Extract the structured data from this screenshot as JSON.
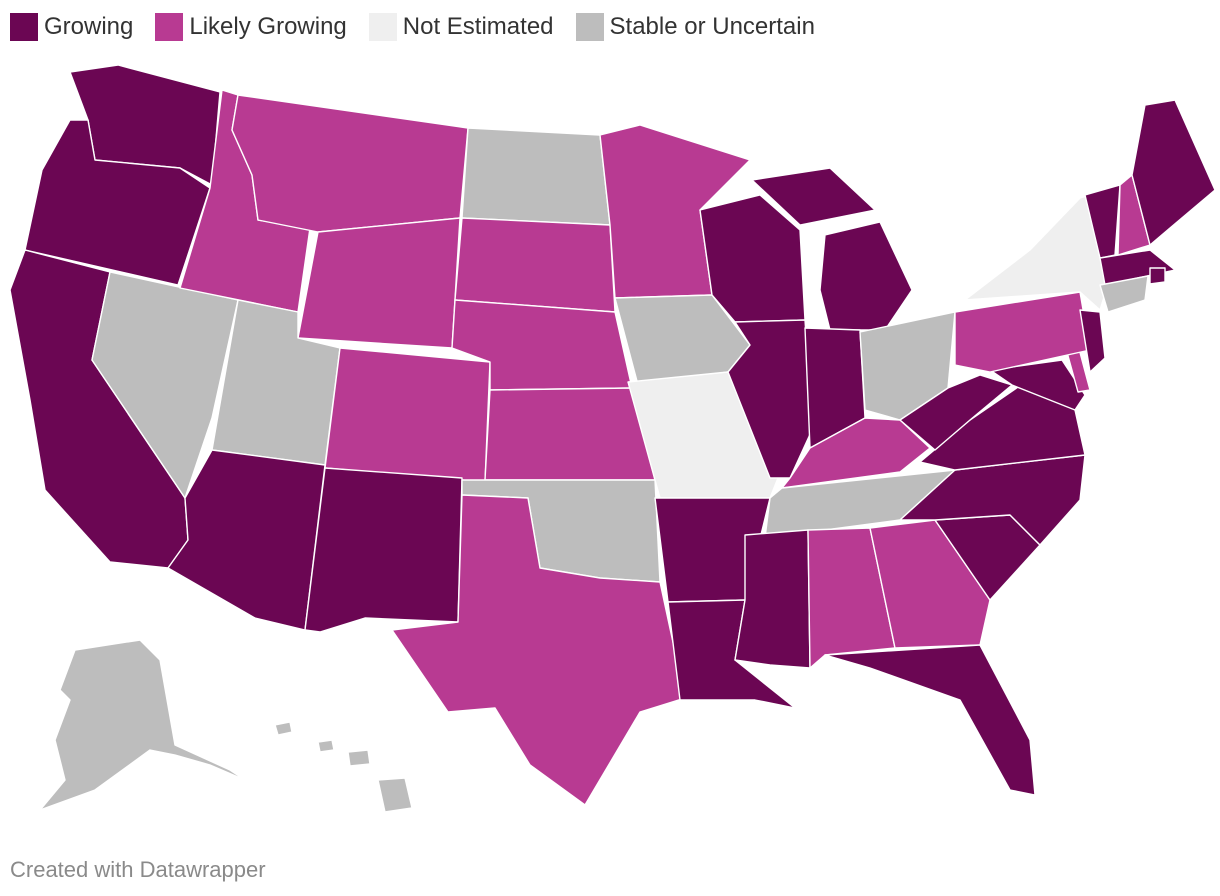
{
  "legend": [
    {
      "label": "Growing",
      "category": "growing",
      "color": "#6b0653"
    },
    {
      "label": "Likely Growing",
      "category": "likely",
      "color": "#b83a92"
    },
    {
      "label": "Not Estimated",
      "category": "not_estimated",
      "color": "#efefef"
    },
    {
      "label": "Stable or Uncertain",
      "category": "stable",
      "color": "#bdbdbd"
    }
  ],
  "states": [
    {
      "name": "Washington",
      "category": "growing"
    },
    {
      "name": "Oregon",
      "category": "growing"
    },
    {
      "name": "California",
      "category": "growing"
    },
    {
      "name": "Nevada",
      "category": "stable"
    },
    {
      "name": "Idaho",
      "category": "likely"
    },
    {
      "name": "Montana",
      "category": "likely"
    },
    {
      "name": "Wyoming",
      "category": "likely"
    },
    {
      "name": "Utah",
      "category": "stable"
    },
    {
      "name": "Arizona",
      "category": "growing"
    },
    {
      "name": "Colorado",
      "category": "likely"
    },
    {
      "name": "New Mexico",
      "category": "growing"
    },
    {
      "name": "North Dakota",
      "category": "stable"
    },
    {
      "name": "South Dakota",
      "category": "likely"
    },
    {
      "name": "Nebraska",
      "category": "likely"
    },
    {
      "name": "Kansas",
      "category": "likely"
    },
    {
      "name": "Oklahoma",
      "category": "stable"
    },
    {
      "name": "Texas",
      "category": "likely"
    },
    {
      "name": "Minnesota",
      "category": "likely"
    },
    {
      "name": "Iowa",
      "category": "stable"
    },
    {
      "name": "Missouri",
      "category": "not_estimated"
    },
    {
      "name": "Arkansas",
      "category": "growing"
    },
    {
      "name": "Louisiana",
      "category": "growing"
    },
    {
      "name": "Wisconsin",
      "category": "growing"
    },
    {
      "name": "Illinois",
      "category": "growing"
    },
    {
      "name": "Michigan",
      "category": "growing"
    },
    {
      "name": "Indiana",
      "category": "growing"
    },
    {
      "name": "Ohio",
      "category": "stable"
    },
    {
      "name": "Kentucky",
      "category": "likely"
    },
    {
      "name": "Tennessee",
      "category": "stable"
    },
    {
      "name": "Mississippi",
      "category": "growing"
    },
    {
      "name": "Alabama",
      "category": "likely"
    },
    {
      "name": "Georgia",
      "category": "likely"
    },
    {
      "name": "Florida",
      "category": "growing"
    },
    {
      "name": "South Carolina",
      "category": "growing"
    },
    {
      "name": "North Carolina",
      "category": "growing"
    },
    {
      "name": "Virginia",
      "category": "growing"
    },
    {
      "name": "West Virginia",
      "category": "growing"
    },
    {
      "name": "Pennsylvania",
      "category": "likely"
    },
    {
      "name": "New York",
      "category": "not_estimated"
    },
    {
      "name": "Vermont",
      "category": "growing"
    },
    {
      "name": "New Hampshire",
      "category": "likely"
    },
    {
      "name": "Maine",
      "category": "growing"
    },
    {
      "name": "Massachusetts",
      "category": "growing"
    },
    {
      "name": "Rhode Island",
      "category": "growing"
    },
    {
      "name": "Connecticut",
      "category": "stable"
    },
    {
      "name": "New Jersey",
      "category": "growing"
    },
    {
      "name": "Delaware",
      "category": "likely"
    },
    {
      "name": "Maryland",
      "category": "growing"
    },
    {
      "name": "Alaska",
      "category": "stable"
    },
    {
      "name": "Hawaii",
      "category": "stable"
    }
  ],
  "credit": "Created with Datawrapper"
}
